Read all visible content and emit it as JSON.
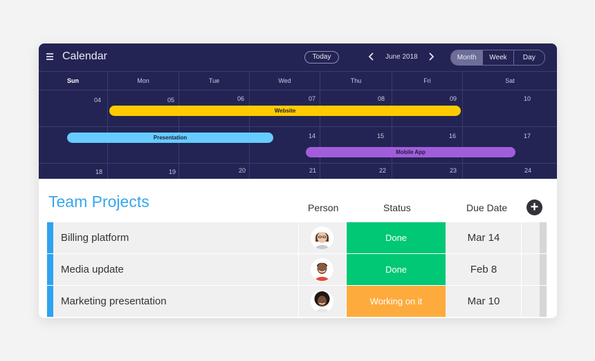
{
  "calendar": {
    "title": "Calendar",
    "today_label": "Today",
    "month_label": "June 2018",
    "views": [
      "Month",
      "Week",
      "Day"
    ],
    "active_view": "Month",
    "day_names": [
      "Sun",
      "Mon",
      "Tue",
      "Wed",
      "Thu",
      "Fri",
      "Sat"
    ],
    "weeks": [
      [
        "04",
        "05",
        "06",
        "07",
        "08",
        "09",
        "10"
      ],
      [
        "",
        "",
        "",
        "14",
        "15",
        "16",
        "17"
      ],
      [
        "18",
        "19",
        "20",
        "21",
        "22",
        "23",
        "24"
      ]
    ],
    "events": {
      "website": "Website",
      "presentation": "Presentation",
      "mobile_app": "Mobile App"
    },
    "colors": {
      "background": "#232453",
      "website": "#ffcb00",
      "presentation": "#66ccff",
      "mobile_app": "#a25ddc"
    }
  },
  "projects": {
    "title": "Team Projects",
    "columns": {
      "person": "Person",
      "status": "Status",
      "due_date": "Due Date"
    },
    "add_icon": "plus-icon",
    "rows": [
      {
        "name": "Billing platform",
        "status": "Done",
        "status_color": "#00c875",
        "due": "Mar 14"
      },
      {
        "name": "Media update",
        "status": "Done",
        "status_color": "#00c875",
        "due": "Feb 8"
      },
      {
        "name": "Marketing presentation",
        "status": "Working on it",
        "status_color": "#fdab3d",
        "due": "Mar 10"
      }
    ],
    "colors": {
      "title": "#36a6ee",
      "row_accent": "#2da4ee"
    }
  }
}
